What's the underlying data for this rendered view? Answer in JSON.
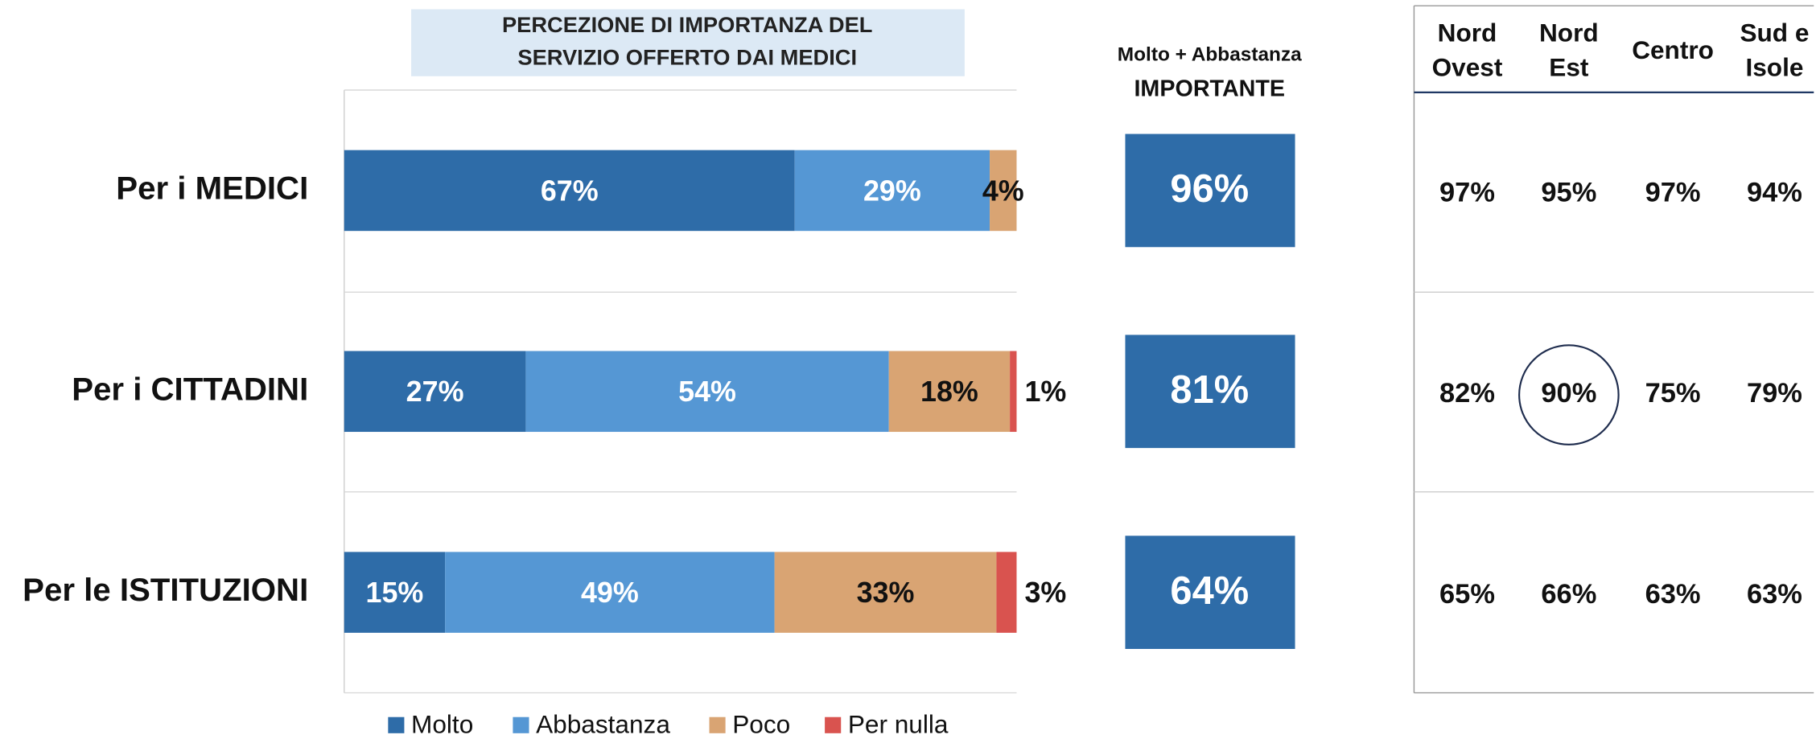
{
  "chart_data": {
    "type": "bar",
    "orientation": "horizontal",
    "stacked": true,
    "title": [
      "PERCEZIONE DI IMPORTANZA DEL",
      "SERVIZIO OFFERTO DAI MEDICI"
    ],
    "categories": [
      "Per i MEDICI",
      "Per i CITTADINI",
      "Per le ISTITUZIONI"
    ],
    "xlim": [
      0,
      100
    ],
    "series": [
      {
        "name": "Molto",
        "color": "#2e6ca8",
        "values": [
          67,
          27,
          15
        ],
        "value_labels": [
          "67%",
          "27%",
          "15%"
        ]
      },
      {
        "name": "Abbastanza",
        "color": "#5597d4",
        "values": [
          29,
          54,
          49
        ],
        "value_labels": [
          "29%",
          "54%",
          "49%"
        ]
      },
      {
        "name": "Poco",
        "color": "#d9a473",
        "values": [
          4,
          18,
          33
        ],
        "value_labels": [
          "4%",
          "18%",
          "33%"
        ]
      },
      {
        "name": "Per nulla",
        "color": "#d9534f",
        "values": [
          0,
          1,
          3
        ],
        "value_labels": [
          null,
          "1%",
          "3%"
        ]
      }
    ],
    "legend": "bottom"
  },
  "summary": {
    "header": [
      "Molto + Abbastanza",
      "IMPORTANTE"
    ],
    "color": "#2e6ca8",
    "values": [
      96,
      81,
      64
    ],
    "value_labels": [
      "96%",
      "81%",
      "64%"
    ]
  },
  "table": {
    "columns": [
      [
        "Nord",
        "Ovest"
      ],
      [
        "Nord",
        "Est"
      ],
      [
        "Centro"
      ],
      [
        "Sud e",
        "Isole"
      ]
    ],
    "rows": [
      [
        "97%",
        "95%",
        "97%",
        "94%"
      ],
      [
        "82%",
        "90%",
        "75%",
        "79%"
      ],
      [
        "65%",
        "66%",
        "63%",
        "63%"
      ]
    ],
    "highlight": [
      1,
      1
    ]
  }
}
